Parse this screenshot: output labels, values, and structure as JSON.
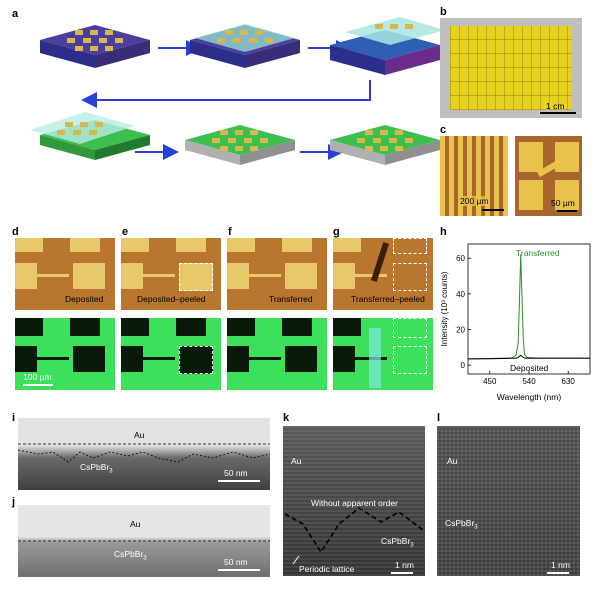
{
  "panels": {
    "a": "a",
    "b": "b",
    "c": "c",
    "d": "d",
    "e": "e",
    "f": "f",
    "g": "g",
    "h": "h",
    "i": "i",
    "j": "j",
    "k": "k",
    "l": "l"
  },
  "b_scale": "1 cm",
  "c_scale_left": "200 µm",
  "c_scale_right": "50 µm",
  "d_label": "Deposited",
  "e_label": "Deposited–peeled",
  "f_label": "Transferred",
  "g_label": "Transferred–peeled",
  "d_scale": "100 µm",
  "i_au": "Au",
  "i_cs": "CsPbBr",
  "i_sub": "3",
  "i_scale": "50 nm",
  "j_au": "Au",
  "j_cs": "CsPbBr",
  "j_sub": "3",
  "j_scale": "50 nm",
  "k_au": "Au",
  "k_order": "Without apparent order",
  "k_cs": "CsPbBr",
  "k_sub": "3",
  "k_lattice": "Periodic lattice",
  "k_scale": "1 nm",
  "l_au": "Au",
  "l_cs": "CsPbBr",
  "l_sub": "3",
  "l_scale": "1 nm",
  "colors": {
    "arrow": "#2940d8",
    "film": "#40c060",
    "gold": "#d9b84a",
    "substrate": "#2b2f8a"
  },
  "chart_data": {
    "type": "line",
    "xlabel": "Wavelength (nm)",
    "ylabel": "Intensity (10³ counts)",
    "xlim": [
      400,
      680
    ],
    "ylim": [
      -5,
      68
    ],
    "xticks": [
      450,
      540,
      630
    ],
    "yticks": [
      0,
      20,
      40,
      60
    ],
    "series": [
      {
        "name": "Transferred",
        "color": "#2e8b2e",
        "x": [
          400,
          450,
          500,
          510,
          515,
          518,
          521,
          524,
          527,
          530,
          535,
          540,
          560,
          600,
          680
        ],
        "y": [
          3.5,
          3.7,
          4.0,
          5.5,
          12,
          35,
          62,
          38,
          14,
          6,
          4.5,
          4.2,
          4.0,
          4.0,
          4.0
        ]
      },
      {
        "name": "Deposited",
        "color": "#000000",
        "x": [
          400,
          450,
          500,
          510,
          515,
          518,
          521,
          524,
          527,
          530,
          540,
          600,
          680
        ],
        "y": [
          3.5,
          3.6,
          3.8,
          3.9,
          4.2,
          4.8,
          5.5,
          4.9,
          4.3,
          4.0,
          3.9,
          3.8,
          3.8
        ]
      }
    ]
  }
}
